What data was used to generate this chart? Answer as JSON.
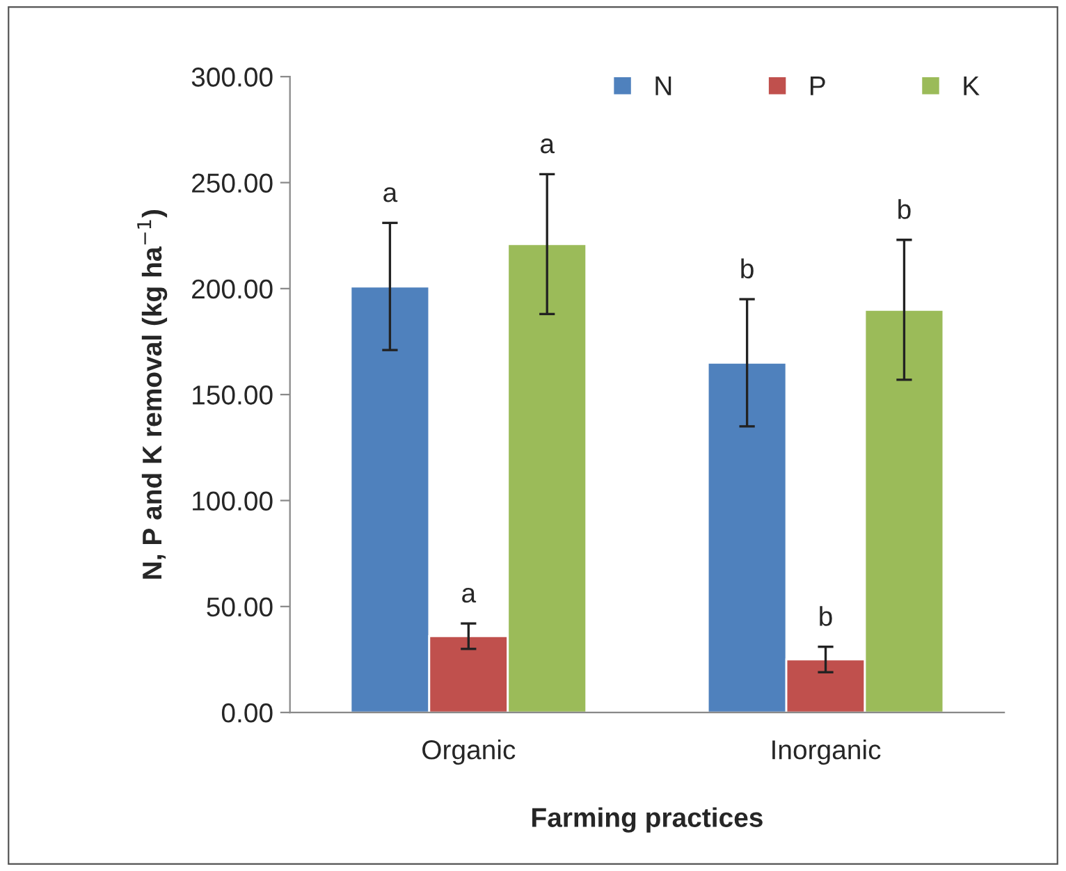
{
  "chart_data": {
    "type": "bar",
    "xlabel": "Farming practices",
    "ylabel": "N, P and K removal (kg ha$^{−1}$)",
    "categories": [
      "Organic",
      "Inorganic"
    ],
    "series": [
      {
        "name": "N",
        "color": "#4f81bd",
        "values": [
          201,
          165
        ],
        "errors": [
          30,
          30
        ]
      },
      {
        "name": "P",
        "color": "#c0504d",
        "values": [
          36,
          25
        ],
        "errors": [
          6,
          6
        ]
      },
      {
        "name": "K",
        "color": "#9bbb59",
        "values": [
          221,
          190
        ],
        "errors": [
          33,
          33
        ]
      }
    ],
    "ylim": [
      0,
      300
    ],
    "yticks": [
      {
        "value": 0,
        "label": "0.00"
      },
      {
        "value": 50,
        "label": "50.00"
      },
      {
        "value": 100,
        "label": "100.00"
      },
      {
        "value": 150,
        "label": "150.00"
      },
      {
        "value": 200,
        "label": "200.00"
      },
      {
        "value": 250,
        "label": "250.00"
      },
      {
        "value": 300,
        "label": "300.00"
      }
    ],
    "annotations": [
      "a",
      "a",
      "a",
      "b",
      "b",
      "b"
    ],
    "grid": false,
    "legend": "top right"
  }
}
